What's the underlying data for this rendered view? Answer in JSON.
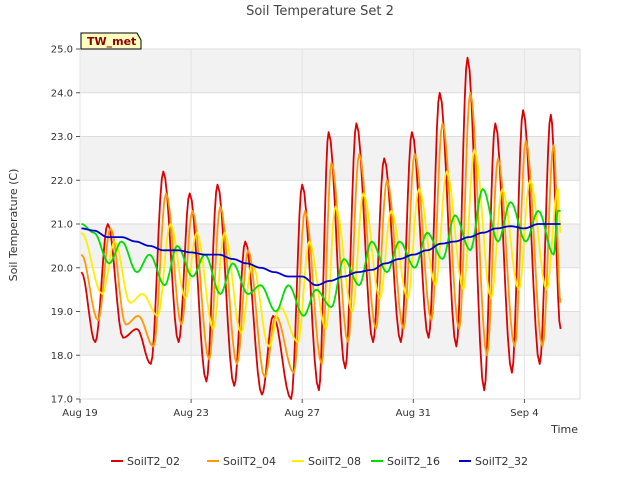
{
  "chart_data": {
    "type": "line",
    "title": "Soil Temperature Set 2",
    "xlabel": "Time",
    "ylabel": "Soil Temperature (C)",
    "station_badge": "TW_met",
    "x_unit": "days since Aug 19",
    "xlim": [
      0,
      18
    ],
    "ylim": [
      17.0,
      25.0
    ],
    "y_ticks": [
      17.0,
      18.0,
      19.0,
      20.0,
      21.0,
      22.0,
      23.0,
      24.0,
      25.0
    ],
    "x_ticks": [
      {
        "x": 0,
        "label": "Aug 19"
      },
      {
        "x": 4,
        "label": "Aug 23"
      },
      {
        "x": 8,
        "label": "Aug 27"
      },
      {
        "x": 12,
        "label": "Aug 31"
      },
      {
        "x": 16,
        "label": "Sep 4"
      }
    ],
    "legend_position": "bottom",
    "background_bands": true,
    "series": [
      {
        "name": "SoilT2_02",
        "color": "#dd0000",
        "points": [
          [
            0.05,
            19.9
          ],
          [
            0.55,
            18.3
          ],
          [
            1.0,
            21.0
          ],
          [
            1.55,
            18.4
          ],
          [
            2.05,
            18.6
          ],
          [
            2.55,
            17.8
          ],
          [
            3.0,
            22.2
          ],
          [
            3.55,
            18.3
          ],
          [
            3.95,
            21.7
          ],
          [
            4.55,
            17.4
          ],
          [
            4.95,
            21.9
          ],
          [
            5.55,
            17.3
          ],
          [
            5.95,
            20.6
          ],
          [
            6.55,
            17.1
          ],
          [
            6.95,
            18.9
          ],
          [
            7.6,
            17.0
          ],
          [
            8.0,
            21.9
          ],
          [
            8.6,
            17.2
          ],
          [
            8.95,
            23.1
          ],
          [
            9.55,
            17.7
          ],
          [
            9.95,
            23.3
          ],
          [
            10.55,
            18.3
          ],
          [
            10.95,
            22.5
          ],
          [
            11.55,
            18.3
          ],
          [
            11.95,
            23.1
          ],
          [
            12.55,
            18.4
          ],
          [
            12.95,
            24.0
          ],
          [
            13.55,
            18.2
          ],
          [
            13.95,
            24.8
          ],
          [
            14.55,
            17.2
          ],
          [
            14.95,
            23.3
          ],
          [
            15.55,
            17.6
          ],
          [
            15.95,
            23.6
          ],
          [
            16.55,
            17.8
          ],
          [
            16.95,
            23.5
          ],
          [
            17.3,
            18.6
          ]
        ]
      },
      {
        "name": "SoilT2_04",
        "color": "#ff9900",
        "points": [
          [
            0.05,
            20.3
          ],
          [
            0.65,
            18.8
          ],
          [
            1.1,
            20.9
          ],
          [
            1.65,
            18.7
          ],
          [
            2.1,
            18.9
          ],
          [
            2.65,
            18.2
          ],
          [
            3.1,
            21.7
          ],
          [
            3.65,
            18.7
          ],
          [
            4.05,
            21.3
          ],
          [
            4.65,
            17.9
          ],
          [
            5.05,
            21.4
          ],
          [
            5.65,
            17.8
          ],
          [
            6.05,
            20.4
          ],
          [
            6.65,
            17.5
          ],
          [
            7.05,
            18.9
          ],
          [
            7.7,
            17.6
          ],
          [
            8.1,
            21.3
          ],
          [
            8.7,
            17.8
          ],
          [
            9.05,
            22.4
          ],
          [
            9.65,
            18.3
          ],
          [
            10.05,
            22.6
          ],
          [
            10.65,
            18.6
          ],
          [
            11.05,
            22.0
          ],
          [
            11.65,
            18.6
          ],
          [
            12.05,
            22.6
          ],
          [
            12.65,
            18.8
          ],
          [
            13.05,
            23.3
          ],
          [
            13.65,
            18.6
          ],
          [
            14.05,
            24.0
          ],
          [
            14.65,
            18.0
          ],
          [
            15.05,
            22.5
          ],
          [
            15.65,
            18.2
          ],
          [
            16.05,
            22.9
          ],
          [
            16.65,
            18.2
          ],
          [
            17.05,
            22.8
          ],
          [
            17.3,
            19.2
          ]
        ]
      },
      {
        "name": "SoilT2_08",
        "color": "#ffee00",
        "points": [
          [
            0.05,
            20.8
          ],
          [
            0.8,
            19.4
          ],
          [
            1.25,
            20.6
          ],
          [
            1.8,
            19.2
          ],
          [
            2.25,
            19.4
          ],
          [
            2.8,
            18.9
          ],
          [
            3.25,
            21.0
          ],
          [
            3.8,
            19.3
          ],
          [
            4.2,
            20.8
          ],
          [
            4.8,
            18.6
          ],
          [
            5.2,
            20.8
          ],
          [
            5.8,
            18.5
          ],
          [
            6.2,
            20.1
          ],
          [
            6.8,
            18.2
          ],
          [
            7.2,
            19.1
          ],
          [
            7.85,
            18.3
          ],
          [
            8.25,
            20.6
          ],
          [
            8.85,
            18.6
          ],
          [
            9.2,
            21.4
          ],
          [
            9.8,
            19.0
          ],
          [
            10.2,
            21.7
          ],
          [
            10.8,
            19.3
          ],
          [
            11.2,
            21.3
          ],
          [
            11.8,
            19.3
          ],
          [
            12.2,
            21.8
          ],
          [
            12.8,
            19.6
          ],
          [
            13.2,
            22.2
          ],
          [
            13.8,
            19.5
          ],
          [
            14.2,
            22.7
          ],
          [
            14.8,
            19.3
          ],
          [
            15.2,
            21.8
          ],
          [
            15.8,
            19.5
          ],
          [
            16.2,
            22.0
          ],
          [
            16.8,
            19.5
          ],
          [
            17.2,
            21.8
          ],
          [
            17.3,
            20.8
          ]
        ]
      },
      {
        "name": "SoilT2_16",
        "color": "#00dd00",
        "points": [
          [
            0.05,
            21.0
          ],
          [
            0.5,
            20.8
          ],
          [
            1.05,
            20.1
          ],
          [
            1.5,
            20.6
          ],
          [
            2.05,
            19.9
          ],
          [
            2.5,
            20.3
          ],
          [
            3.05,
            19.6
          ],
          [
            3.5,
            20.5
          ],
          [
            4.05,
            19.8
          ],
          [
            4.5,
            20.3
          ],
          [
            5.05,
            19.4
          ],
          [
            5.5,
            20.1
          ],
          [
            6.05,
            19.4
          ],
          [
            6.5,
            19.6
          ],
          [
            7.05,
            19.0
          ],
          [
            7.5,
            19.6
          ],
          [
            8.05,
            18.9
          ],
          [
            8.5,
            19.5
          ],
          [
            9.05,
            19.1
          ],
          [
            9.5,
            20.2
          ],
          [
            10.05,
            19.6
          ],
          [
            10.5,
            20.6
          ],
          [
            11.05,
            19.9
          ],
          [
            11.5,
            20.6
          ],
          [
            12.05,
            20.0
          ],
          [
            12.5,
            20.8
          ],
          [
            13.05,
            20.2
          ],
          [
            13.5,
            21.2
          ],
          [
            14.05,
            20.4
          ],
          [
            14.5,
            21.8
          ],
          [
            15.05,
            20.6
          ],
          [
            15.5,
            21.5
          ],
          [
            16.05,
            20.6
          ],
          [
            16.5,
            21.3
          ],
          [
            17.05,
            20.3
          ],
          [
            17.2,
            21.3
          ],
          [
            17.3,
            21.3
          ]
        ]
      },
      {
        "name": "SoilT2_32",
        "color": "#0000cc",
        "points": [
          [
            0.05,
            20.9
          ],
          [
            0.5,
            20.85
          ],
          [
            1.0,
            20.7
          ],
          [
            1.5,
            20.7
          ],
          [
            2.0,
            20.6
          ],
          [
            2.5,
            20.5
          ],
          [
            3.0,
            20.4
          ],
          [
            3.5,
            20.4
          ],
          [
            4.0,
            20.35
          ],
          [
            4.5,
            20.3
          ],
          [
            5.0,
            20.3
          ],
          [
            5.5,
            20.2
          ],
          [
            6.0,
            20.1
          ],
          [
            6.5,
            20.0
          ],
          [
            7.0,
            19.9
          ],
          [
            7.5,
            19.8
          ],
          [
            8.0,
            19.8
          ],
          [
            8.5,
            19.6
          ],
          [
            9.0,
            19.7
          ],
          [
            9.5,
            19.8
          ],
          [
            10.0,
            19.9
          ],
          [
            10.5,
            19.95
          ],
          [
            11.0,
            20.1
          ],
          [
            11.5,
            20.2
          ],
          [
            12.0,
            20.3
          ],
          [
            12.5,
            20.4
          ],
          [
            13.0,
            20.55
          ],
          [
            13.5,
            20.6
          ],
          [
            14.0,
            20.7
          ],
          [
            14.5,
            20.8
          ],
          [
            15.0,
            20.9
          ],
          [
            15.5,
            20.95
          ],
          [
            16.0,
            20.9
          ],
          [
            16.5,
            21.0
          ],
          [
            17.0,
            21.0
          ],
          [
            17.3,
            21.0
          ]
        ]
      }
    ]
  }
}
